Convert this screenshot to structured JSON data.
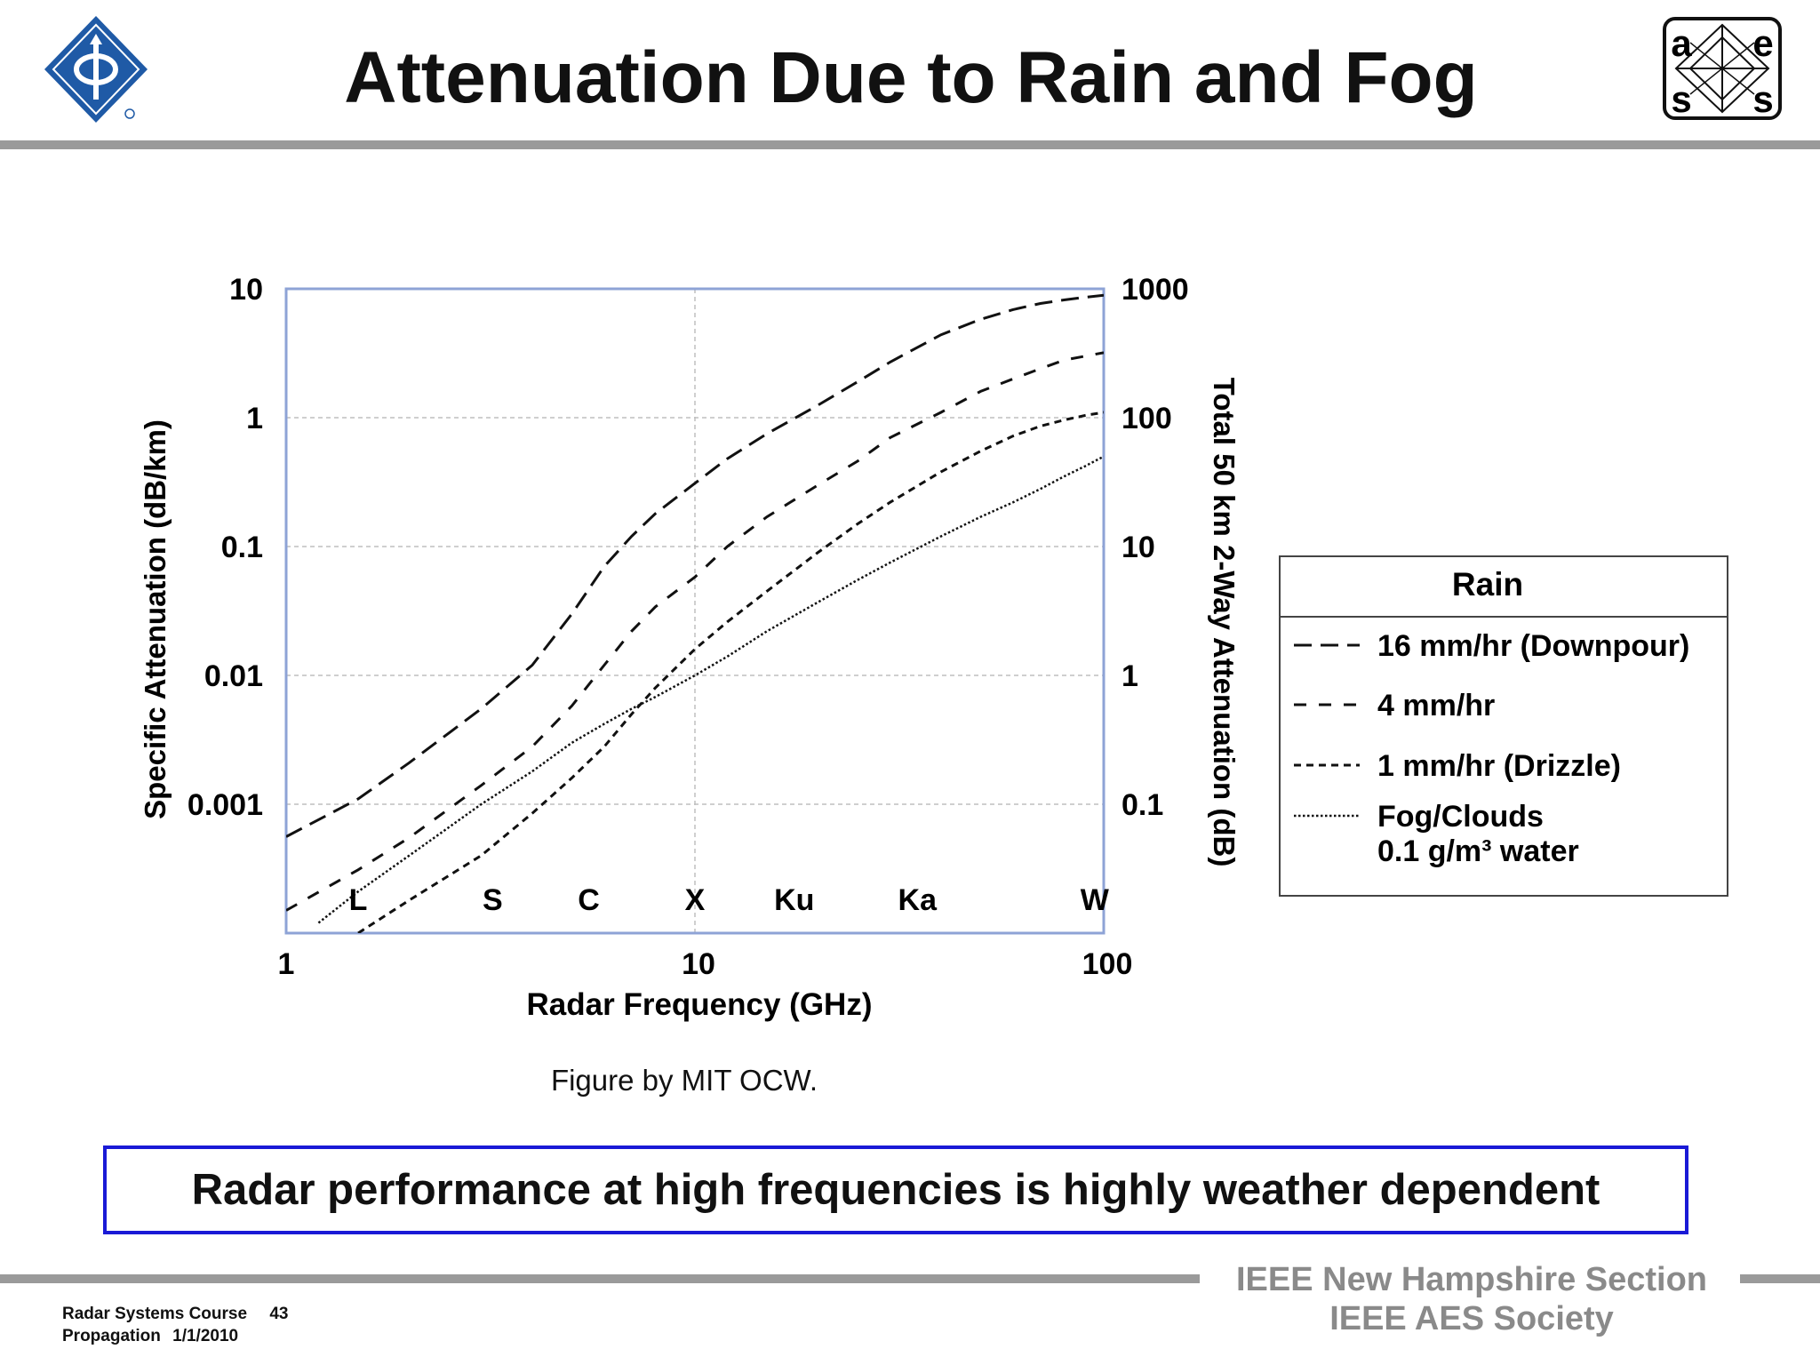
{
  "slide": {
    "title": "Attenuation Due to Rain and Fog",
    "caption": "Figure by MIT OCW.",
    "conclusion": "Radar performance at high frequencies is highly weather dependent",
    "footer": {
      "org_line1": "IEEE New Hampshire Section",
      "org_line2": "IEEE AES Society",
      "course": "Radar Systems Course",
      "page": "43",
      "topic": "Propagation",
      "date": "1/1/2010"
    },
    "logos": {
      "left": "ieee-logo",
      "right": "aess-logo",
      "right_letters": [
        "a",
        "e",
        "s",
        "s"
      ]
    }
  },
  "chart_data": {
    "type": "line",
    "xlabel": "Radar Frequency (GHz)",
    "ylabel": "Specific Attenuation (dB/km)",
    "y2label": "Total 50 km 2-Way Attenuation (dB)",
    "x_scale": "log",
    "y_scale": "log",
    "xlim": [
      1,
      100
    ],
    "ylim": [
      0.0001,
      10
    ],
    "y2lim": [
      0.01,
      1000
    ],
    "x_ticks": [
      "1",
      "10",
      "100"
    ],
    "y_ticks": [
      "10",
      "1",
      "0.1",
      "0.01",
      "0.001"
    ],
    "y2_ticks": [
      "1000",
      "100",
      "10",
      "1",
      "0.1"
    ],
    "band_labels": [
      {
        "label": "L",
        "x": 1.5
      },
      {
        "label": "S",
        "x": 3.2
      },
      {
        "label": "C",
        "x": 5.5
      },
      {
        "label": "X",
        "x": 10
      },
      {
        "label": "Ku",
        "x": 17.5
      },
      {
        "label": "Ka",
        "x": 35
      },
      {
        "label": "W",
        "x": 95
      }
    ],
    "grid": true,
    "legend": {
      "title": "Rain",
      "position": "right",
      "entries": [
        {
          "text": "16 mm/hr (Downpour)",
          "style": "long-dash"
        },
        {
          "text": "4 mm/hr",
          "style": "dash"
        },
        {
          "text": "1 mm/hr (Drizzle)",
          "style": "short-dash"
        },
        {
          "text": "Fog/Clouds",
          "text2": "0.1 g/m³ water",
          "style": "dotted"
        }
      ]
    },
    "series": [
      {
        "name": "16 mm/hr (Downpour)",
        "style": "long-dash",
        "x": [
          1,
          1.5,
          2,
          3,
          4,
          5,
          6,
          7,
          8,
          10,
          12,
          15,
          20,
          25,
          30,
          40,
          50,
          60,
          70,
          80,
          90,
          100
        ],
        "y": [
          0.00056,
          0.0011,
          0.0021,
          0.0055,
          0.012,
          0.03,
          0.07,
          0.12,
          0.18,
          0.31,
          0.48,
          0.75,
          1.25,
          1.9,
          2.7,
          4.4,
          5.8,
          6.9,
          7.7,
          8.2,
          8.6,
          8.9
        ]
      },
      {
        "name": "4 mm/hr",
        "style": "dash",
        "x": [
          1,
          1.5,
          2,
          3,
          4,
          5,
          6,
          7,
          8,
          10,
          12,
          15,
          20,
          25,
          30,
          40,
          50,
          60,
          70,
          80,
          90,
          100
        ],
        "y": [
          0.00015,
          0.00031,
          0.00055,
          0.0014,
          0.0028,
          0.0058,
          0.012,
          0.022,
          0.034,
          0.058,
          0.1,
          0.17,
          0.3,
          0.46,
          0.7,
          1.1,
          1.6,
          2.0,
          2.4,
          2.8,
          3.0,
          3.2
        ]
      },
      {
        "name": "1 mm/hr (Drizzle)",
        "style": "short-dash",
        "x": [
          1.5,
          2,
          3,
          4,
          5,
          6,
          7,
          8,
          10,
          12,
          15,
          20,
          25,
          30,
          40,
          50,
          60,
          70,
          80,
          90,
          100
        ],
        "y": [
          0.0001,
          0.00018,
          0.0004,
          0.00085,
          0.0016,
          0.0028,
          0.005,
          0.008,
          0.016,
          0.026,
          0.045,
          0.09,
          0.15,
          0.22,
          0.38,
          0.55,
          0.72,
          0.86,
          0.96,
          1.04,
          1.1
        ]
      },
      {
        "name": "Fog/Clouds 0.1 g/m³ water",
        "style": "dotted",
        "x": [
          1.2,
          1.5,
          2,
          3,
          4,
          5,
          6,
          7,
          8,
          10,
          12,
          15,
          20,
          25,
          30,
          40,
          50,
          60,
          70,
          80,
          90,
          100
        ],
        "y": [
          0.00012,
          0.00021,
          0.0004,
          0.001,
          0.0018,
          0.003,
          0.0042,
          0.0055,
          0.0068,
          0.01,
          0.014,
          0.022,
          0.037,
          0.055,
          0.075,
          0.12,
          0.17,
          0.22,
          0.28,
          0.35,
          0.42,
          0.5
        ]
      }
    ]
  }
}
